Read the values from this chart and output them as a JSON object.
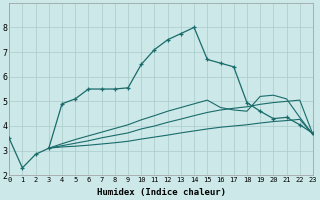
{
  "xlabel": "Humidex (Indice chaleur)",
  "xlim": [
    0,
    23
  ],
  "ylim": [
    2,
    9
  ],
  "yticks": [
    2,
    3,
    4,
    5,
    6,
    7,
    8
  ],
  "xticks": [
    0,
    1,
    2,
    3,
    4,
    5,
    6,
    7,
    8,
    9,
    10,
    11,
    12,
    13,
    14,
    15,
    16,
    17,
    18,
    19,
    20,
    21,
    22,
    23
  ],
  "bg_color": "#cce8e8",
  "grid_color_major": "#aacccc",
  "grid_color_minor": "#bbdddd",
  "line_color": "#1a6b6b",
  "line1_x": [
    0,
    1,
    2,
    3,
    4,
    5,
    6,
    7,
    8,
    9,
    10,
    11,
    12,
    13,
    14,
    15,
    16,
    17,
    18,
    19,
    20,
    21,
    22,
    23
  ],
  "line1_y": [
    3.5,
    2.3,
    2.85,
    3.1,
    4.9,
    5.1,
    5.5,
    5.5,
    5.5,
    5.55,
    6.5,
    7.1,
    7.5,
    7.75,
    8.0,
    6.7,
    6.55,
    6.4,
    4.95,
    4.6,
    4.3,
    4.35,
    4.05,
    3.7
  ],
  "line2_x": [
    3,
    4,
    5,
    6,
    7,
    8,
    9,
    10,
    11,
    12,
    13,
    14,
    15,
    16,
    17,
    18,
    19,
    20,
    21,
    22,
    23
  ],
  "line2_y": [
    3.1,
    3.15,
    3.18,
    3.22,
    3.27,
    3.32,
    3.38,
    3.47,
    3.55,
    3.63,
    3.72,
    3.8,
    3.88,
    3.95,
    4.0,
    4.05,
    4.12,
    4.18,
    4.22,
    4.27,
    3.65
  ],
  "line3_x": [
    3,
    4,
    5,
    6,
    7,
    8,
    9,
    10,
    11,
    12,
    13,
    14,
    15,
    16,
    17,
    18,
    19,
    20,
    21,
    22,
    23
  ],
  "line3_y": [
    3.1,
    3.2,
    3.3,
    3.4,
    3.52,
    3.62,
    3.72,
    3.88,
    4.0,
    4.15,
    4.28,
    4.42,
    4.55,
    4.65,
    4.72,
    4.78,
    4.88,
    4.95,
    5.0,
    5.05,
    3.65
  ],
  "line4_x": [
    3,
    4,
    5,
    6,
    7,
    8,
    9,
    10,
    11,
    12,
    13,
    14,
    15,
    16,
    17,
    18,
    19,
    20,
    21,
    22,
    23
  ],
  "line4_y": [
    3.1,
    3.28,
    3.45,
    3.6,
    3.75,
    3.9,
    4.05,
    4.25,
    4.42,
    4.6,
    4.75,
    4.9,
    5.05,
    4.75,
    4.65,
    4.6,
    5.2,
    5.25,
    5.1,
    4.35,
    3.65
  ]
}
